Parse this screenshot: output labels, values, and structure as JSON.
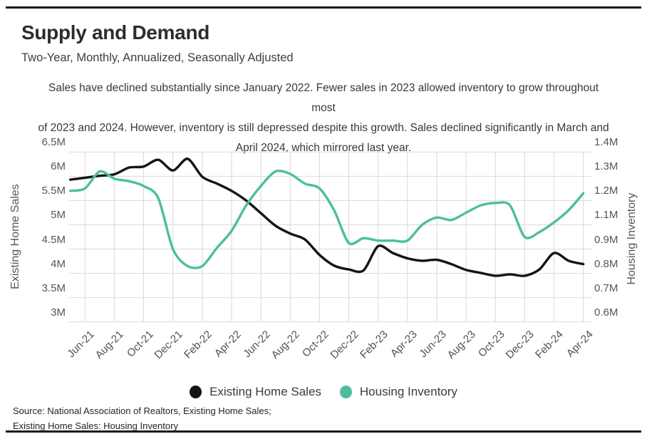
{
  "header": {
    "title": "Supply and Demand",
    "subtitle": "Two-Year, Monthly, Annualized, Seasonally Adjusted",
    "description": [
      "Sales have declined substantially since January 2022. Fewer sales in 2023 allowed inventory to grow throughout most",
      "of 2023 and 2024. However, inventory is still depressed despite this growth. Sales declined significantly in March and",
      "April 2024, which mirrored last year."
    ]
  },
  "chart_data": {
    "type": "line",
    "title": "Supply and Demand",
    "x_monthly": [
      "May-21",
      "Jun-21",
      "Jul-21",
      "Aug-21",
      "Sep-21",
      "Oct-21",
      "Nov-21",
      "Dec-21",
      "Jan-22",
      "Feb-22",
      "Mar-22",
      "Apr-22",
      "May-22",
      "Jun-22",
      "Jul-22",
      "Aug-22",
      "Sep-22",
      "Oct-22",
      "Nov-22",
      "Dec-22",
      "Jan-23",
      "Feb-23",
      "Mar-23",
      "Apr-23",
      "May-23",
      "Jun-23",
      "Jul-23",
      "Aug-23",
      "Sep-23",
      "Oct-23",
      "Nov-23",
      "Dec-23",
      "Jan-24",
      "Feb-24",
      "Mar-24",
      "Apr-24"
    ],
    "x_tick_labels": [
      "Jun-21",
      "Aug-21",
      "Oct-21",
      "Dec-21",
      "Feb-22",
      "Apr-22",
      "Jun-22",
      "Aug-22",
      "Oct-22",
      "Dec-22",
      "Feb-23",
      "Apr-23",
      "Jun-23",
      "Aug-23",
      "Oct-23",
      "Dec-23",
      "Feb-24",
      "Apr-24"
    ],
    "series": [
      {
        "name": "Existing Home Sales",
        "axis": "left",
        "color": "#141414",
        "values": [
          5.93,
          5.97,
          6.01,
          6.04,
          6.18,
          6.2,
          6.34,
          6.12,
          6.36,
          5.99,
          5.85,
          5.7,
          5.5,
          5.24,
          4.98,
          4.82,
          4.7,
          4.38,
          4.16,
          4.08,
          4.06,
          4.56,
          4.42,
          4.31,
          4.26,
          4.28,
          4.19,
          4.07,
          4.01,
          3.95,
          3.98,
          3.95,
          4.08,
          4.42,
          4.26,
          4.19
        ]
      },
      {
        "name": "Housing Inventory",
        "axis": "right",
        "color": "#4dbda1",
        "values": [
          1.24,
          1.25,
          1.32,
          1.29,
          1.28,
          1.26,
          1.21,
          0.9,
          0.83,
          0.83,
          0.91,
          1.05,
          1.18,
          1.26,
          1.32,
          1.31,
          1.27,
          1.25,
          1.16,
          0.95,
          0.99,
          0.97,
          0.97,
          0.97,
          1.1,
          1.13,
          1.12,
          1.15,
          1.18,
          1.19,
          1.18,
          1.0,
          1.04,
          1.11,
          1.16,
          1.23
        ]
      }
    ],
    "left_axis": {
      "label": "Existing Home Sales",
      "tick_labels": [
        "6.5M",
        "6M",
        "5.5M",
        "5M",
        "4.5M",
        "4M",
        "3.5M",
        "3M"
      ],
      "tick_values": [
        6.5,
        6.0,
        5.5,
        5.0,
        4.5,
        4.0,
        3.5,
        3.0
      ]
    },
    "right_axis": {
      "label": "Housing Inventory",
      "tick_labels": [
        "1.4M",
        "1.3M",
        "1.2M",
        "1.1M",
        "0.9M",
        "0.8M",
        "0.7M",
        "0.6M"
      ],
      "tick_values": [
        1.4,
        1.3,
        1.2,
        1.1,
        0.9,
        0.8,
        0.7,
        0.6
      ]
    },
    "grid": true,
    "gridline_color": "#d9d9d9",
    "legend_position": "bottom"
  },
  "footer": {
    "source_line1": "Source:  National Association of Realtors, Existing Home Sales;",
    "source_line2": "Existing Home Sales: Housing Inventory"
  }
}
